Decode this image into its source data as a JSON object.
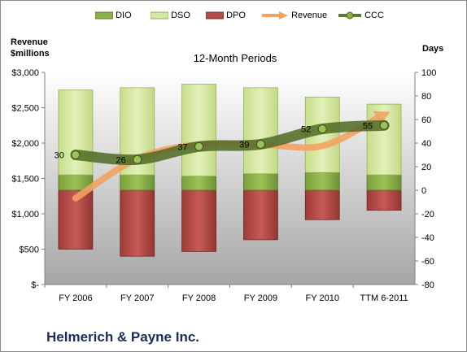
{
  "company": "Helmerich & Payne Inc.",
  "legend": {
    "dio": "DIO",
    "dso": "DSO",
    "dpo": "DPO",
    "revenue": "Revenue",
    "ccc": "CCC"
  },
  "colors": {
    "dio": "#8bb04a",
    "dso": "#d6e8a6",
    "dpo": "#b54a47",
    "revenue": "#f2a261",
    "ccc": "#5f7a2d",
    "background_top": "#ffffff",
    "background_bottom": "#a6a6a6"
  },
  "chart_data": {
    "type": "bar",
    "title": "12-Month Periods",
    "ylabel_left": "Revenue\n$millions",
    "ylabel_right": "Days",
    "categories": [
      "FY 2006",
      "FY 2007",
      "FY 2008",
      "FY 2009",
      "FY 2010",
      "TTM 6-2011"
    ],
    "left_axis": {
      "ylim": [
        0,
        3000
      ],
      "ticks": [
        "$-",
        "$500",
        "$1,000",
        "$1,500",
        "$2,000",
        "$2,500",
        "$3,000"
      ]
    },
    "right_axis": {
      "ylim": [
        -80,
        100
      ],
      "ticks": [
        "-80",
        "-60",
        "-40",
        "-20",
        "0",
        "20",
        "40",
        "60",
        "80",
        "100"
      ]
    },
    "series": [
      {
        "name": "DIO",
        "kind": "bar-stack",
        "axis": "right",
        "values": [
          13,
          13,
          12,
          14,
          15,
          13
        ]
      },
      {
        "name": "DSO",
        "kind": "bar-stack",
        "axis": "right",
        "values": [
          72,
          74,
          78,
          73,
          64,
          60
        ]
      },
      {
        "name": "DPO",
        "kind": "bar-negative",
        "axis": "right",
        "values": [
          -50,
          -56,
          -52,
          -42,
          -25,
          -17
        ]
      },
      {
        "name": "Revenue",
        "kind": "line",
        "axis": "left",
        "values": [
          1220,
          1780,
          1980,
          1980,
          1960,
          2400
        ]
      },
      {
        "name": "CCC",
        "kind": "line",
        "axis": "right",
        "values": [
          30,
          26,
          37,
          39,
          52,
          55
        ]
      }
    ],
    "data_labels": [
      "30",
      "26",
      "37",
      "39",
      "52",
      "55"
    ],
    "grid": false,
    "legend_position": "top"
  }
}
